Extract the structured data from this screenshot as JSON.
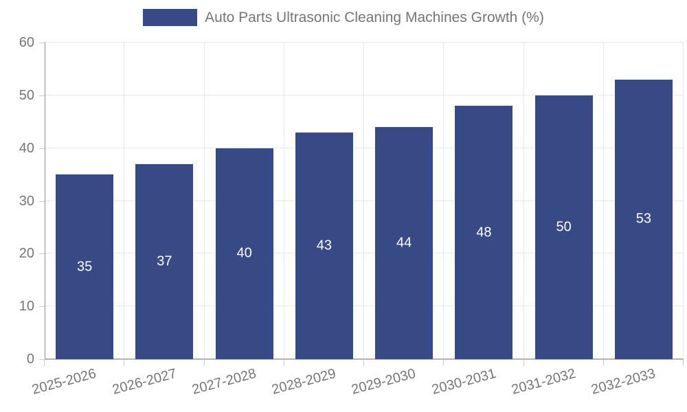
{
  "legend": {
    "label": "Auto Parts Ultrasonic Cleaning Machines Growth (%)"
  },
  "colors": {
    "bar": "#374a85",
    "bar_label": "#ffffff",
    "axis_text": "#757575",
    "grid": "#e6e6e6",
    "y_axis_line": "#8c8c8c",
    "x_axis_line": "#b3b3b3",
    "tick": "#c9c9c9"
  },
  "chart_data": {
    "type": "bar",
    "title": "Auto Parts Ultrasonic Cleaning Machines Growth (%)",
    "categories": [
      "2025-2026",
      "2026-2027",
      "2027-2028",
      "2028-2029",
      "2029-2030",
      "2030-2031",
      "2031-2032",
      "2032-2033"
    ],
    "values": [
      35,
      37,
      40,
      43,
      44,
      48,
      50,
      53
    ],
    "xlabel": "",
    "ylabel": "",
    "ylim": [
      0,
      60
    ],
    "yticks": [
      0,
      10,
      20,
      30,
      40,
      50,
      60
    ],
    "grid": true,
    "legend_position": "top",
    "bar_labels_inside": true,
    "x_label_rotation_deg": -15
  }
}
